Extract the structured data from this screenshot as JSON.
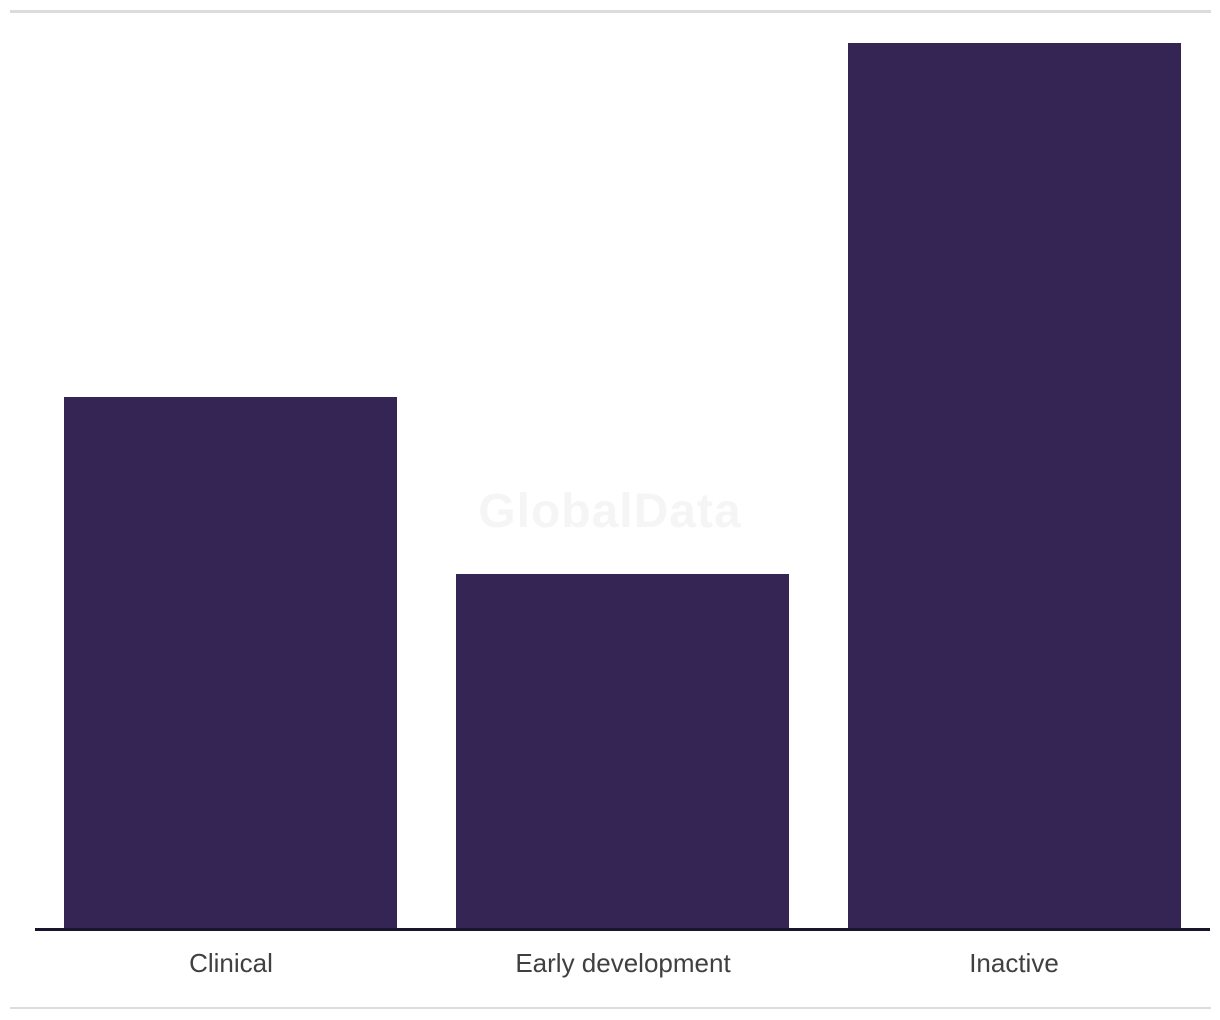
{
  "watermark": {
    "text": "GlobalData",
    "color": "#f5f5f5"
  },
  "chart_data": {
    "type": "bar",
    "categories": [
      "Clinical",
      "Early development",
      "Inactive"
    ],
    "values": [
      3,
      2,
      5
    ],
    "title": "",
    "xlabel": "",
    "ylabel": "",
    "ylim": [
      0,
      5
    ],
    "grid": false,
    "legend": "none",
    "bar_color": "#352555",
    "axis_line_color": "#17152e",
    "label_color": "#404040"
  },
  "page": {
    "background": "#ffffff",
    "divider_color": "#dcdcdc"
  }
}
